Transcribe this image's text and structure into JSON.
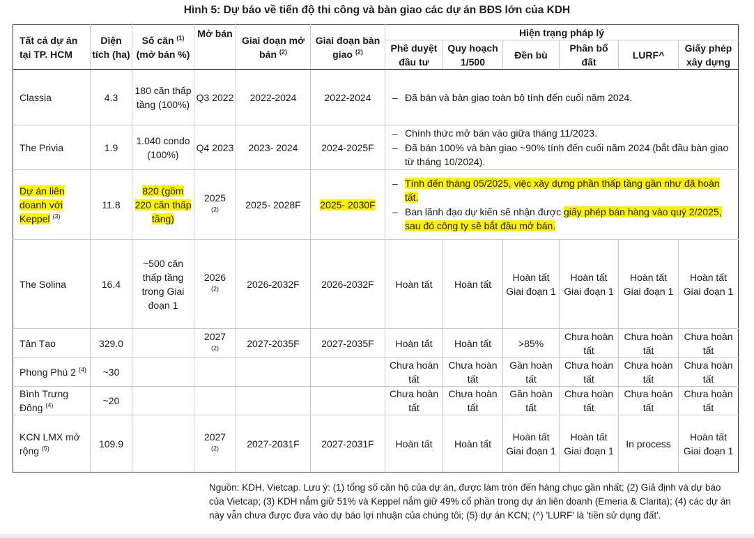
{
  "title": "Hình 5: Dự báo về tiến độ thi công và bàn giao các dự án BĐS lớn của KDH",
  "headers": {
    "project": "Tất cả dự án tại TP. HCM",
    "area": "Diện tích (ha)",
    "units": "Số căn",
    "units_sup": "(1)",
    "units_sub": "(mở bán %)",
    "launch": "Mở bán",
    "construction": "Giai đoạn mở bán",
    "construction_sup": "(2)",
    "handover": "Giai đoạn bàn giao",
    "handover_sup": "(2)",
    "legal": "Hiện trạng pháp lý",
    "legal_cols": [
      "Phê duyệt đầu tư",
      "Quy hoạch 1/500",
      "Đền bù",
      "Phân bổ đất",
      "LURF^",
      "Giấy phép xây dựng"
    ]
  },
  "rows": [
    {
      "name": "Classia",
      "name_sup": "",
      "area": "4.3",
      "units": "180 căn thấp tầng (100%)",
      "launch": "Q3 2022",
      "launch_sup": "",
      "construction": "2022-2024",
      "handover": "2022-2024",
      "notes": [
        "Đã bán và bàn giao toàn bộ tính đến cuối năm 2024."
      ]
    },
    {
      "name": "The Privia",
      "name_sup": "",
      "area": "1.9",
      "units": "1.040 condo (100%)",
      "launch": "Q4 2023",
      "launch_sup": "",
      "construction": "2023- 2024",
      "handover": "2024-2025F",
      "notes": [
        "Chính thức mở bán vào giữa tháng 11/2023.",
        "Đã bán 100% và bàn giao ~90% tính đến cuối năm 2024 (bắt đầu bàn giao từ tháng 10/2024)."
      ]
    },
    {
      "name": "Dự án liên doanh với Keppel",
      "name_sup": "(3)",
      "area": "11.8",
      "units": "820 (gồm 220 căn thấp tầng)",
      "launch": "2025",
      "launch_sup": "(2)",
      "construction": "2025- 2028F",
      "handover": "2025- 2030F",
      "notes": [
        "Tính đến tháng 05/2025, việc xây dựng phần thấp tầng gần như đã hoàn tất."
      ],
      "note2_pre": "Ban lãnh đạo dự kiến sẽ nhận được ",
      "note2_hl": "giấy phép bán hàng vào quý 2/2025, sau đó công ty sẽ bắt đầu mở bán."
    },
    {
      "name": "The Solina",
      "name_sup": "",
      "area": "16.4",
      "units": "~500 căn thấp tầng trong Giai đoạn 1",
      "launch": "2026",
      "launch_sup": "(2)",
      "construction": "2026-2032F",
      "handover": "2026-2032F",
      "legal": [
        "Hoàn tất",
        "Hoàn tất",
        "Hoàn tất Giai đoạn 1",
        "Hoàn tất Giai đoạn 1",
        "Hoàn tất Giai đoạn 1",
        "Hoàn tất Giai đoạn 1"
      ]
    },
    {
      "name": "Tân Tạo",
      "name_sup": "",
      "area": "329.0",
      "units": "",
      "launch": "2027",
      "launch_sup": "(2)",
      "construction": "2027-2035F",
      "handover": "2027-2035F",
      "legal": [
        "Hoàn tất",
        "Hoàn tất",
        ">85%",
        "Chưa hoàn tất",
        "Chưa hoàn tất",
        "Chưa hoàn tất"
      ]
    },
    {
      "name": "Phong Phú 2",
      "name_sup": "(4)",
      "area": "~30",
      "units": "",
      "launch": "",
      "launch_sup": "",
      "construction": "",
      "handover": "",
      "legal": [
        "Chưa hoàn tất",
        "Chưa hoàn tất",
        "Gần hoàn tất",
        "Chưa hoàn tất",
        "Chưa hoàn tất",
        "Chưa hoàn tất"
      ]
    },
    {
      "name": "Bình Trưng Đông",
      "name_sup": "(4)",
      "area": "~20",
      "units": "",
      "launch": "",
      "launch_sup": "",
      "construction": "",
      "handover": "",
      "legal": [
        "Chưa hoàn tất",
        "Chưa hoàn tất",
        "Gần hoàn tất",
        "Chưa hoàn tất",
        "Chưa hoàn tất",
        "Chưa hoàn tất"
      ]
    },
    {
      "name": "KCN LMX mở rộng",
      "name_sup": "(5)",
      "area": "109.9",
      "units": "",
      "launch": "2027",
      "launch_sup": "(2)",
      "construction": "2027-2031F",
      "handover": "2027-2031F",
      "legal": [
        "Hoàn tất",
        "Hoàn tất",
        "Hoàn tất Giai đoạn 1",
        "Hoàn tất Giai đoạn 1",
        "In process",
        "Hoàn tất Giai đoạn 1"
      ]
    }
  ],
  "footnote": "Nguồn: KDH, Vietcap. Lưu ý: (1) tổng số căn hộ của dự án, được làm tròn đến hàng chục gần nhất; (2) Giả định và dự báo của Vietcap; (3) KDH nắm giữ 51% và Keppel nắm giữ 49% cổ phần trong dự án liên doanh (Emeria & Clarita); (4) các dự án này vẫn chưa được đưa vào dự báo lợi nhuận của chúng tôi; (5) dự án KCN; (^) 'LURF' là 'tiền sử dụng đất'.",
  "colors": {
    "highlight": "#fff200",
    "border": "#c8c8c8",
    "rule": "#333333"
  }
}
